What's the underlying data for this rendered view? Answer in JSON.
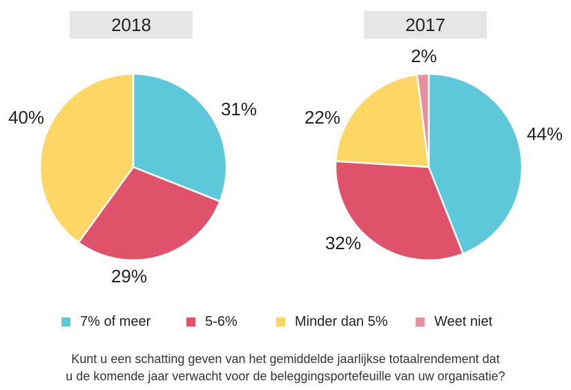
{
  "chart_data": [
    {
      "type": "pie",
      "title": "2018",
      "categories": [
        "7% of meer",
        "5-6%",
        "Minder dan 5%"
      ],
      "values": [
        31,
        29,
        40
      ],
      "labels": [
        "31%",
        "29%",
        "40%"
      ],
      "colors": [
        "#5ec8db",
        "#e0516a",
        "#fdd766"
      ]
    },
    {
      "type": "pie",
      "title": "2017",
      "categories": [
        "7% of meer",
        "5-6%",
        "Minder dan 5%",
        "Weet niet"
      ],
      "values": [
        44,
        32,
        22,
        2
      ],
      "labels": [
        "44%",
        "32%",
        "22%",
        "2%"
      ],
      "colors": [
        "#5ec8db",
        "#e0516a",
        "#fdd766",
        "#e8909c"
      ]
    }
  ],
  "legend": [
    {
      "label": "7% of meer",
      "color": "#5ec8db"
    },
    {
      "label": "5-6%",
      "color": "#e0516a"
    },
    {
      "label": "Minder dan 5%",
      "color": "#fdd766"
    },
    {
      "label": "Weet niet",
      "color": "#e8909c"
    }
  ],
  "question": {
    "line1": "Kunt u een schatting geven van het gemiddelde jaarlijkse totaalrendement dat",
    "line2": "u de komende jaar verwacht voor de beleggingsportefeuille van uw organisatie?"
  }
}
